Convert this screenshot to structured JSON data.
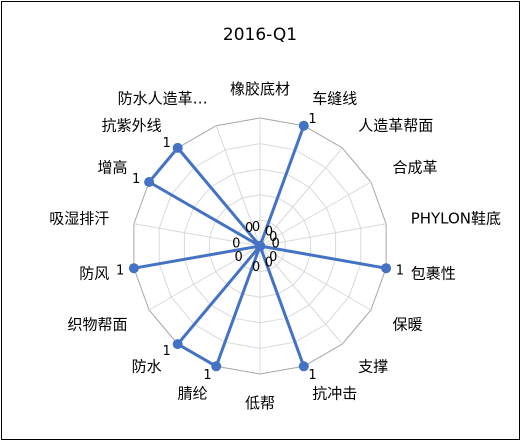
{
  "chart_data": {
    "type": "radar",
    "title": "2016-Q1",
    "rmax": 1,
    "rings": 5,
    "grid": true,
    "legend": "none",
    "series_color": "#4472C4",
    "categories": [
      "橡胶底材",
      "车缝线",
      "人造革帮面",
      "合成革",
      "PHYLON鞋底",
      "包裹性",
      "保暖",
      "支撑",
      "抗冲击",
      "低帮",
      "腈纶",
      "防水",
      "织物帮面",
      "防风",
      "吸湿排汗",
      "增高",
      "抗紫外线",
      "防水人造革…"
    ],
    "values": [
      0,
      1,
      0,
      0,
      0,
      1,
      0,
      0,
      1,
      0,
      1,
      1,
      0,
      1,
      0,
      1,
      1,
      0
    ],
    "data_labels": [
      "0",
      "1",
      "0",
      "0",
      "0",
      "1",
      "0",
      "0",
      "1",
      "0",
      "1",
      "1",
      "0",
      "1",
      "0",
      "1",
      "1",
      "0"
    ]
  }
}
